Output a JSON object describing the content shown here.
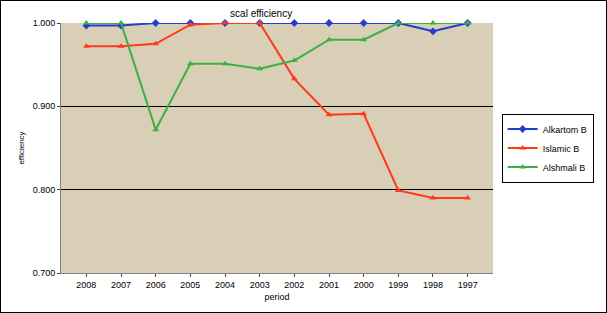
{
  "chart_data": {
    "type": "line",
    "title": "scal efficiency",
    "x_label": "period",
    "y_label": "efficiency",
    "categories": [
      "2008",
      "2007",
      "2006",
      "2005",
      "2004",
      "2003",
      "2002",
      "2001",
      "2000",
      "1999",
      "1998",
      "1997"
    ],
    "series": [
      {
        "name": "Alkartom B",
        "color": "#1f3fd0",
        "marker": "diamond",
        "line_style": "solid",
        "values": [
          0.997,
          0.997,
          1.0,
          1.0,
          1.0,
          1.0,
          1.0,
          1.0,
          1.0,
          1.0,
          0.99,
          1.0
        ]
      },
      {
        "name": "Islamic B",
        "color": "#ff3a1a",
        "marker": "triangle-up",
        "line_style": "solid",
        "values": [
          0.972,
          0.972,
          0.975,
          0.998,
          1.0,
          1.0,
          0.933,
          0.89,
          0.891,
          0.799,
          0.79,
          0.79
        ]
      },
      {
        "name": "Alshmali B",
        "color": "#3cb043",
        "marker": "triangle-up",
        "line_style": "solid",
        "values": [
          1.0,
          1.0,
          0.872,
          0.951,
          0.951,
          0.945,
          0.955,
          0.98,
          0.98,
          1.0,
          1.0,
          1.0
        ]
      }
    ],
    "ylim": [
      0.7,
      1.0
    ],
    "yticks": [
      {
        "value": 0.7,
        "label": "0.700"
      },
      {
        "value": 0.8,
        "label": "0.800"
      },
      {
        "value": 0.9,
        "label": "0.900"
      },
      {
        "value": 1.0,
        "label": "1.000"
      }
    ],
    "grid": true,
    "legend": "right"
  }
}
